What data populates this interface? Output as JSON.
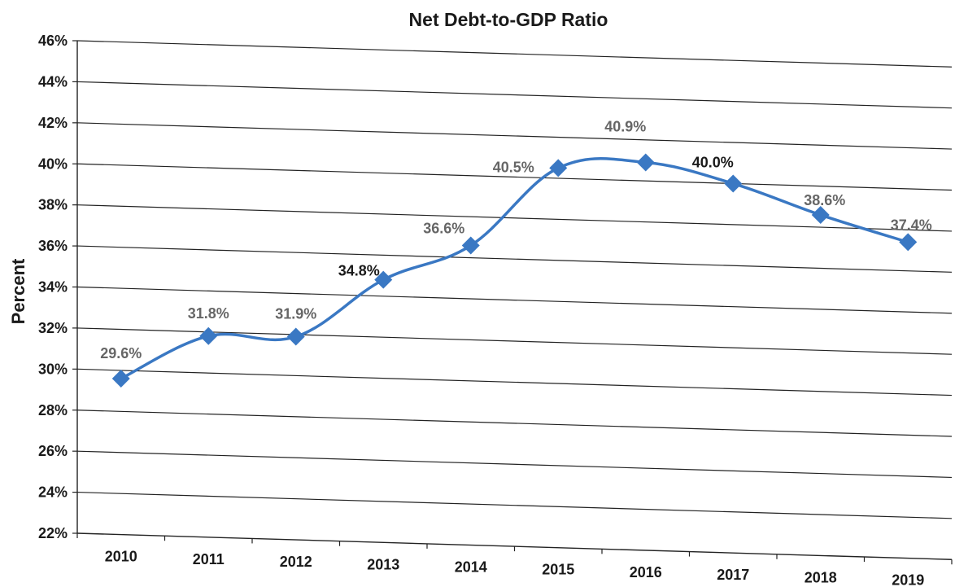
{
  "chart_data": {
    "type": "line",
    "title": "Net Debt-to-GDP Ratio",
    "xlabel": "",
    "ylabel": "Percent",
    "categories": [
      "2010",
      "2011",
      "2012",
      "2013",
      "2014",
      "2015",
      "2016",
      "2017",
      "2018",
      "2019"
    ],
    "series": [
      {
        "values": [
          29.6,
          31.8,
          31.9,
          34.8,
          36.6,
          40.5,
          40.9,
          40.0,
          38.6,
          37.4
        ],
        "data_labels": [
          "29.6%",
          "31.8%",
          "31.9%",
          "34.8%",
          "36.6%",
          "40.5%",
          "40.9%",
          "40.0%",
          "38.6%",
          "37.4%"
        ],
        "color": "#3a78c3",
        "marker": "diamond",
        "smooth": true
      }
    ],
    "y_tick_labels": [
      "22%",
      "24%",
      "26%",
      "28%",
      "30%",
      "32%",
      "34%",
      "36%",
      "38%",
      "40%",
      "42%",
      "44%",
      "46%"
    ],
    "ylim": [
      22,
      46
    ],
    "y_tick_step": 2,
    "grid": true,
    "legend": "none",
    "colors": {
      "line": "#3a78c3",
      "marker": "#3a78c3",
      "grid": "#222222",
      "axis": "#222222",
      "label_dark": "#1a1a1a",
      "label_gray": "#666666"
    }
  }
}
